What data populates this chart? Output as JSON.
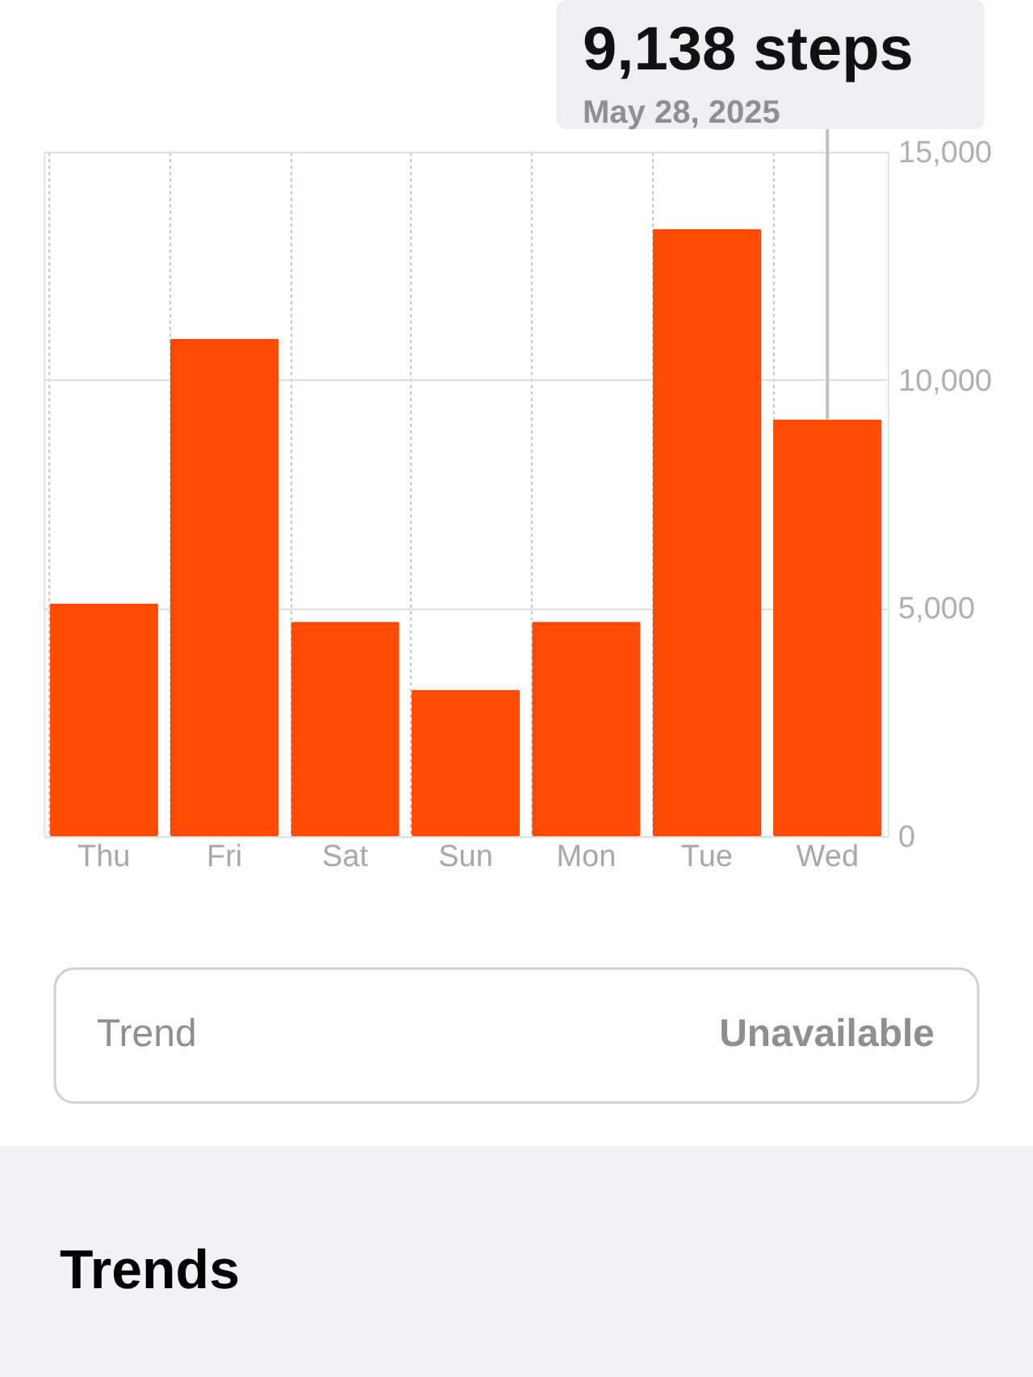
{
  "chart_data": {
    "type": "bar",
    "categories": [
      "Thu",
      "Fri",
      "Sat",
      "Sun",
      "Mon",
      "Tue",
      "Wed"
    ],
    "values": [
      5100,
      10900,
      4700,
      3200,
      4700,
      13300,
      9138
    ],
    "color": "#fe4a02",
    "ylim": [
      0,
      15000
    ],
    "yticks": [
      {
        "value": 0,
        "label": "0"
      },
      {
        "value": 5000,
        "label": "5,000"
      },
      {
        "value": 10000,
        "label": "10,000"
      },
      {
        "value": 15000,
        "label": "15,000"
      }
    ],
    "grid": true,
    "annotations": [
      {
        "text": "9,138 steps",
        "x": "Wed",
        "y": 9138
      },
      "May 28, 2025",
      "Trend",
      "Unavailable",
      "Trends"
    ]
  }
}
